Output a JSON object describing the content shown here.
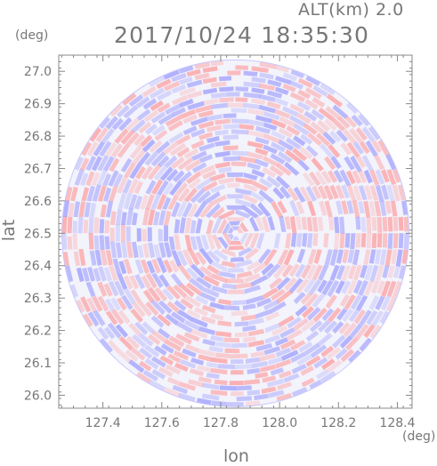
{
  "header": {
    "altitude_label": "ALT(km) 2.0",
    "timestamp": "2017/10/24 18:35:30"
  },
  "axes": {
    "lat_unit": "(deg)",
    "lon_unit": "(deg)",
    "lat_title": "lat",
    "lon_title": "lon",
    "lat_ticks": [
      "27.0",
      "26.9",
      "26.8",
      "26.7",
      "26.6",
      "26.5",
      "26.4",
      "26.3",
      "26.2",
      "26.1",
      "26.0"
    ],
    "lon_ticks": [
      "127.4",
      "127.6",
      "127.8",
      "128.0",
      "128.2",
      "128.4"
    ]
  },
  "map_data": {
    "type": "radar-ppi",
    "center": {
      "lon": 127.85,
      "lat": 26.5
    },
    "lon_range": [
      127.25,
      128.45
    ],
    "lat_range": [
      25.96,
      27.05
    ],
    "lat_tick_values": [
      27.0,
      26.9,
      26.8,
      26.7,
      26.6,
      26.5,
      26.4,
      26.3,
      26.2,
      26.1,
      26.0
    ],
    "lon_tick_values": [
      127.4,
      127.6,
      127.8,
      128.0,
      128.2,
      128.4
    ],
    "colors": {
      "positive": "#ff8f8f",
      "negative": "#8f8fff",
      "frame": "#888888"
    }
  }
}
